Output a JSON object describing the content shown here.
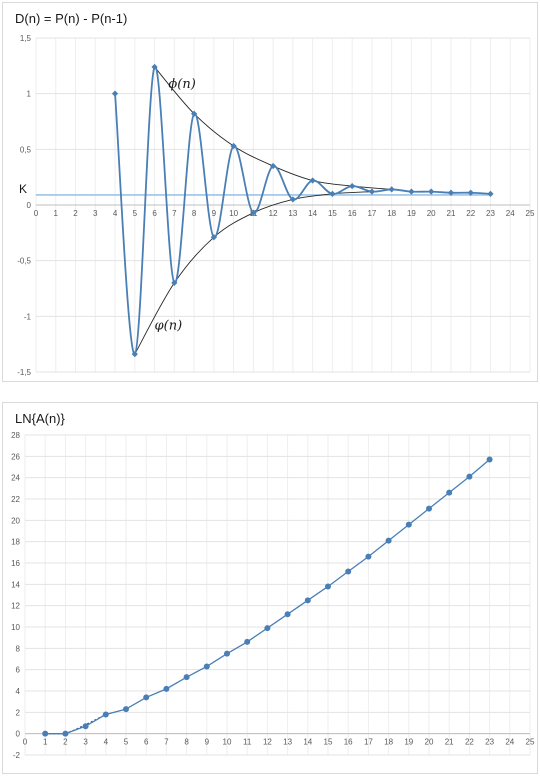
{
  "chart_data": [
    {
      "type": "line",
      "title": "D(n) = P(n) - P(n-1)",
      "xlabel": "",
      "ylabel": "",
      "xlim": [
        0,
        25
      ],
      "ylim": [
        -1.5,
        1.5
      ],
      "x_ticks": [
        0,
        1,
        2,
        3,
        4,
        5,
        6,
        7,
        8,
        9,
        10,
        11,
        12,
        13,
        14,
        15,
        16,
        17,
        18,
        19,
        20,
        21,
        22,
        23,
        24,
        25
      ],
      "y_ticks": [
        {
          "value": 1.5,
          "label": "1,5"
        },
        {
          "value": 1,
          "label": "1"
        },
        {
          "value": 0.5,
          "label": "0,5"
        },
        {
          "value": 0,
          "label": "0"
        },
        {
          "value": -0.5,
          "label": "-0,5"
        },
        {
          "value": -1,
          "label": "-1"
        },
        {
          "value": -1.5,
          "label": "-1,5"
        }
      ],
      "grid": true,
      "series": [
        {
          "x": [
            4,
            5,
            6,
            7,
            8,
            9,
            10,
            11,
            12,
            13,
            14,
            15,
            16,
            17,
            18,
            19,
            20,
            21,
            22,
            23
          ],
          "values": [
            1.0,
            -1.34,
            1.24,
            -0.7,
            0.82,
            -0.29,
            0.53,
            -0.07,
            0.35,
            0.05,
            0.22,
            0.1,
            0.17,
            0.12,
            0.14,
            0.12,
            0.12,
            0.11,
            0.11,
            0.1
          ],
          "color": "#4a7fb5"
        }
      ],
      "envelope_upper": {
        "label": "ϕ(n)",
        "x": [
          6,
          8,
          10,
          12,
          14,
          16,
          18
        ],
        "values": [
          1.24,
          0.82,
          0.53,
          0.35,
          0.22,
          0.17,
          0.14
        ]
      },
      "envelope_lower": {
        "label": "φ(n)",
        "x": [
          5,
          7,
          9,
          11,
          13,
          15,
          17
        ],
        "values": [
          -1.34,
          -0.7,
          -0.29,
          -0.07,
          0.05,
          0.1,
          0.12
        ]
      },
      "reference_line": {
        "label": "K",
        "value": 0.09
      }
    },
    {
      "type": "line",
      "title": "LN{A(n)}",
      "xlabel": "",
      "ylabel": "",
      "xlim": [
        0,
        25
      ],
      "ylim": [
        -2,
        28
      ],
      "x_ticks": [
        0,
        1,
        2,
        3,
        4,
        5,
        6,
        7,
        8,
        9,
        10,
        11,
        12,
        13,
        14,
        15,
        16,
        17,
        18,
        19,
        20,
        21,
        22,
        23,
        24,
        25
      ],
      "y_ticks": [
        {
          "value": 28,
          "label": "28"
        },
        {
          "value": 26,
          "label": "26"
        },
        {
          "value": 24,
          "label": "24"
        },
        {
          "value": 22,
          "label": "22"
        },
        {
          "value": 20,
          "label": "20"
        },
        {
          "value": 18,
          "label": "18"
        },
        {
          "value": 16,
          "label": "16"
        },
        {
          "value": 14,
          "label": "14"
        },
        {
          "value": 12,
          "label": "12"
        },
        {
          "value": 10,
          "label": "10"
        },
        {
          "value": 8,
          "label": "8"
        },
        {
          "value": 6,
          "label": "6"
        },
        {
          "value": 4,
          "label": "4"
        },
        {
          "value": 2,
          "label": "2"
        },
        {
          "value": 0,
          "label": "0"
        },
        {
          "value": -2,
          "label": "-2"
        }
      ],
      "grid": true,
      "series": [
        {
          "x": [
            1,
            2,
            3,
            4,
            5,
            6,
            7,
            8,
            9,
            10,
            11,
            12,
            13,
            14,
            15,
            16,
            17,
            18,
            19,
            20,
            21,
            22,
            23
          ],
          "values": [
            0,
            0,
            0.7,
            1.8,
            2.3,
            3.4,
            4.2,
            5.3,
            6.3,
            7.5,
            8.6,
            9.9,
            11.2,
            12.5,
            13.8,
            15.2,
            16.6,
            18.1,
            19.6,
            21.1,
            22.6,
            24.1,
            25.7
          ],
          "color": "#4a7fb5"
        }
      ],
      "trend_line": {
        "x": [
          1,
          2,
          3,
          4
        ],
        "values": [
          0,
          0.05,
          0.85,
          1.8
        ]
      }
    }
  ]
}
